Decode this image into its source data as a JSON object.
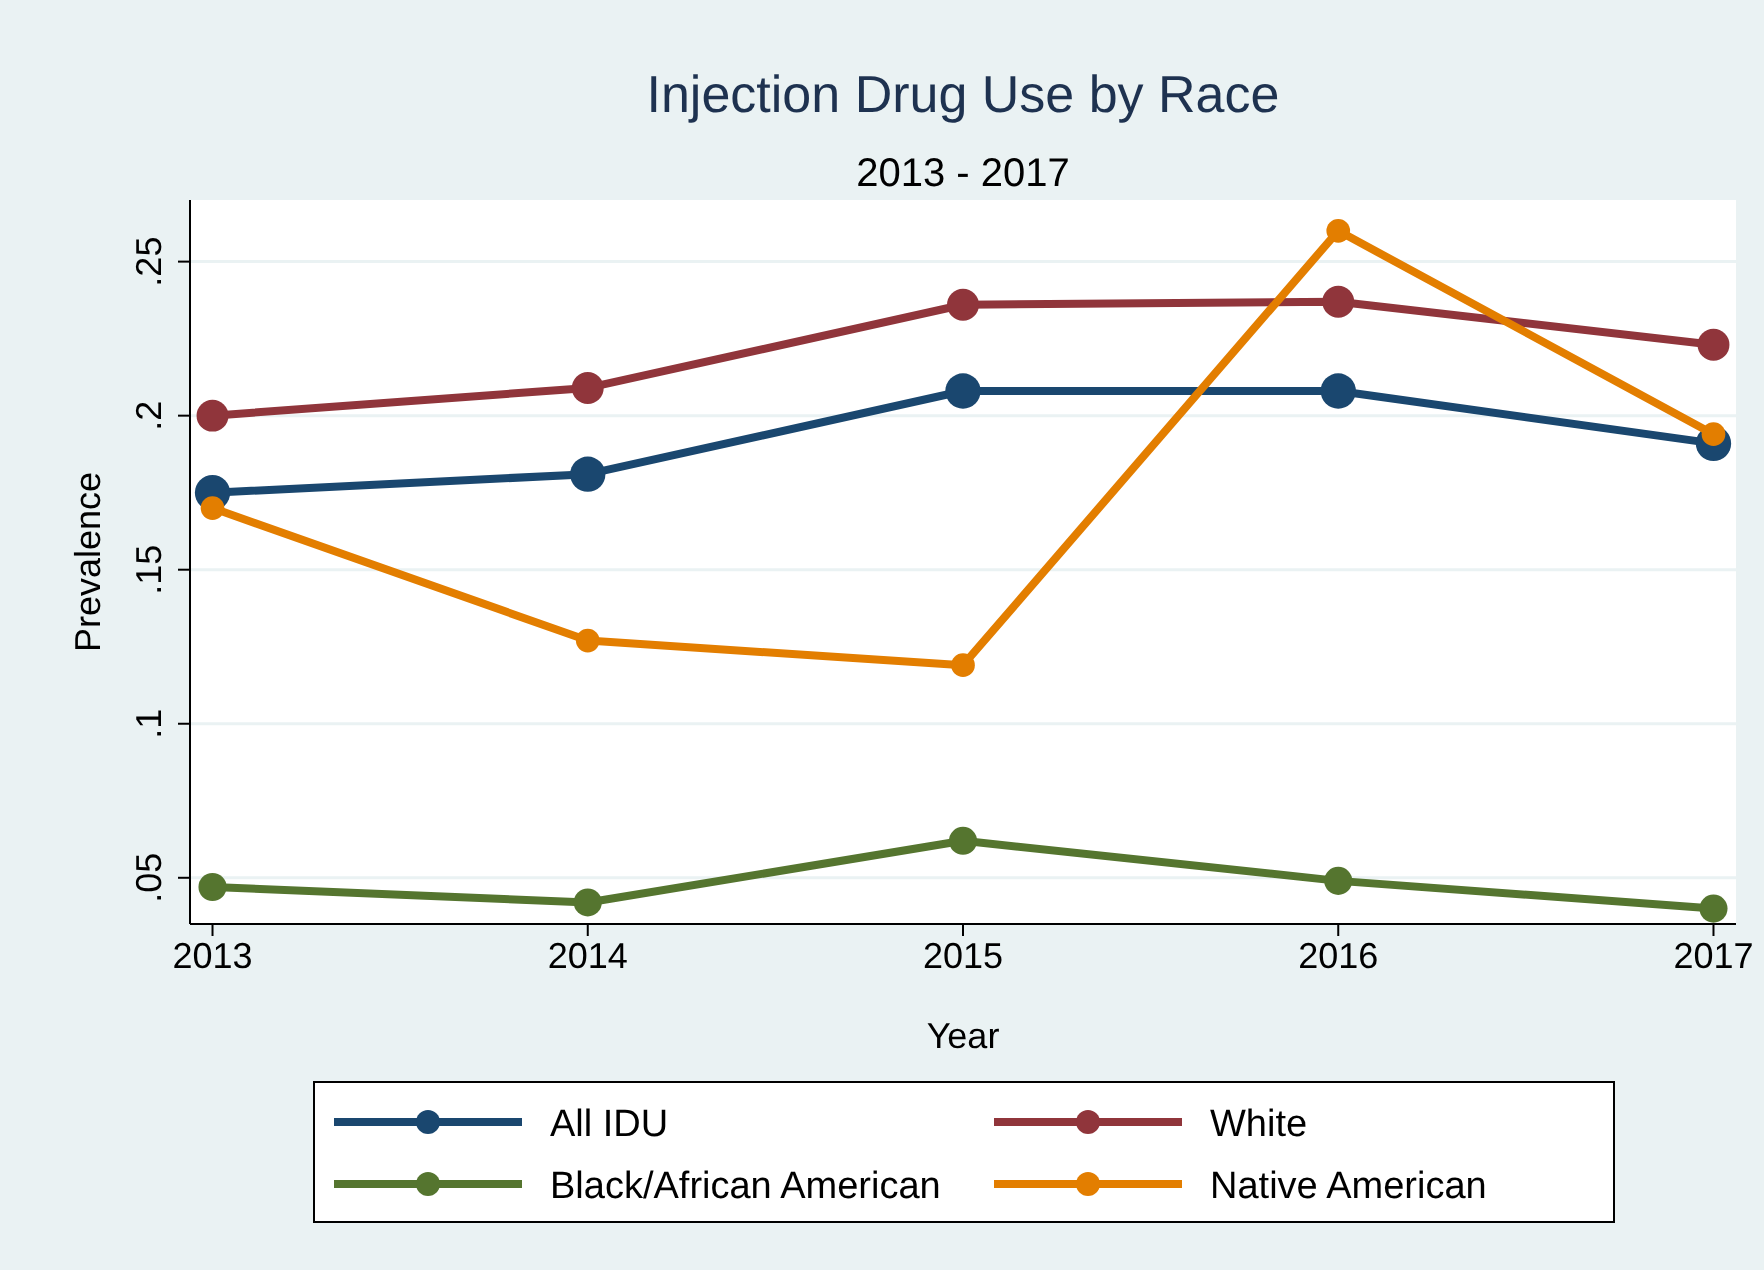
{
  "chart_data": {
    "type": "line",
    "title": "Injection Drug Use by Race",
    "subtitle": "2013 - 2017",
    "xlabel": "Year",
    "ylabel": "Prevalence",
    "x": [
      2013,
      2014,
      2015,
      2016,
      2017
    ],
    "xlim": [
      2012.94,
      2017.06
    ],
    "xticks": [
      2013,
      2014,
      2015,
      2016,
      2017
    ],
    "ylim": [
      0.035,
      0.27
    ],
    "yticks": [
      {
        "value": 0.05,
        "label": ".05"
      },
      {
        "value": 0.1,
        "label": ".1"
      },
      {
        "value": 0.15,
        "label": ".15"
      },
      {
        "value": 0.2,
        "label": ".2"
      },
      {
        "value": 0.25,
        "label": ".25"
      }
    ],
    "grid": "y",
    "legend": "bottom",
    "marker": "circle",
    "line_style": "solid",
    "series": [
      {
        "name": "All IDU",
        "color": "#1a476f",
        "values": [
          0.175,
          0.181,
          0.208,
          0.208,
          0.191
        ]
      },
      {
        "name": "White",
        "color": "#90353b",
        "values": [
          0.2,
          0.209,
          0.236,
          0.237,
          0.223
        ]
      },
      {
        "name": "Black/African American",
        "color": "#55752f",
        "values": [
          0.047,
          0.042,
          0.062,
          0.049,
          0.04
        ]
      },
      {
        "name": "Native American",
        "color": "#e37e00",
        "values": [
          0.17,
          0.127,
          0.119,
          0.26,
          0.194
        ]
      }
    ]
  }
}
